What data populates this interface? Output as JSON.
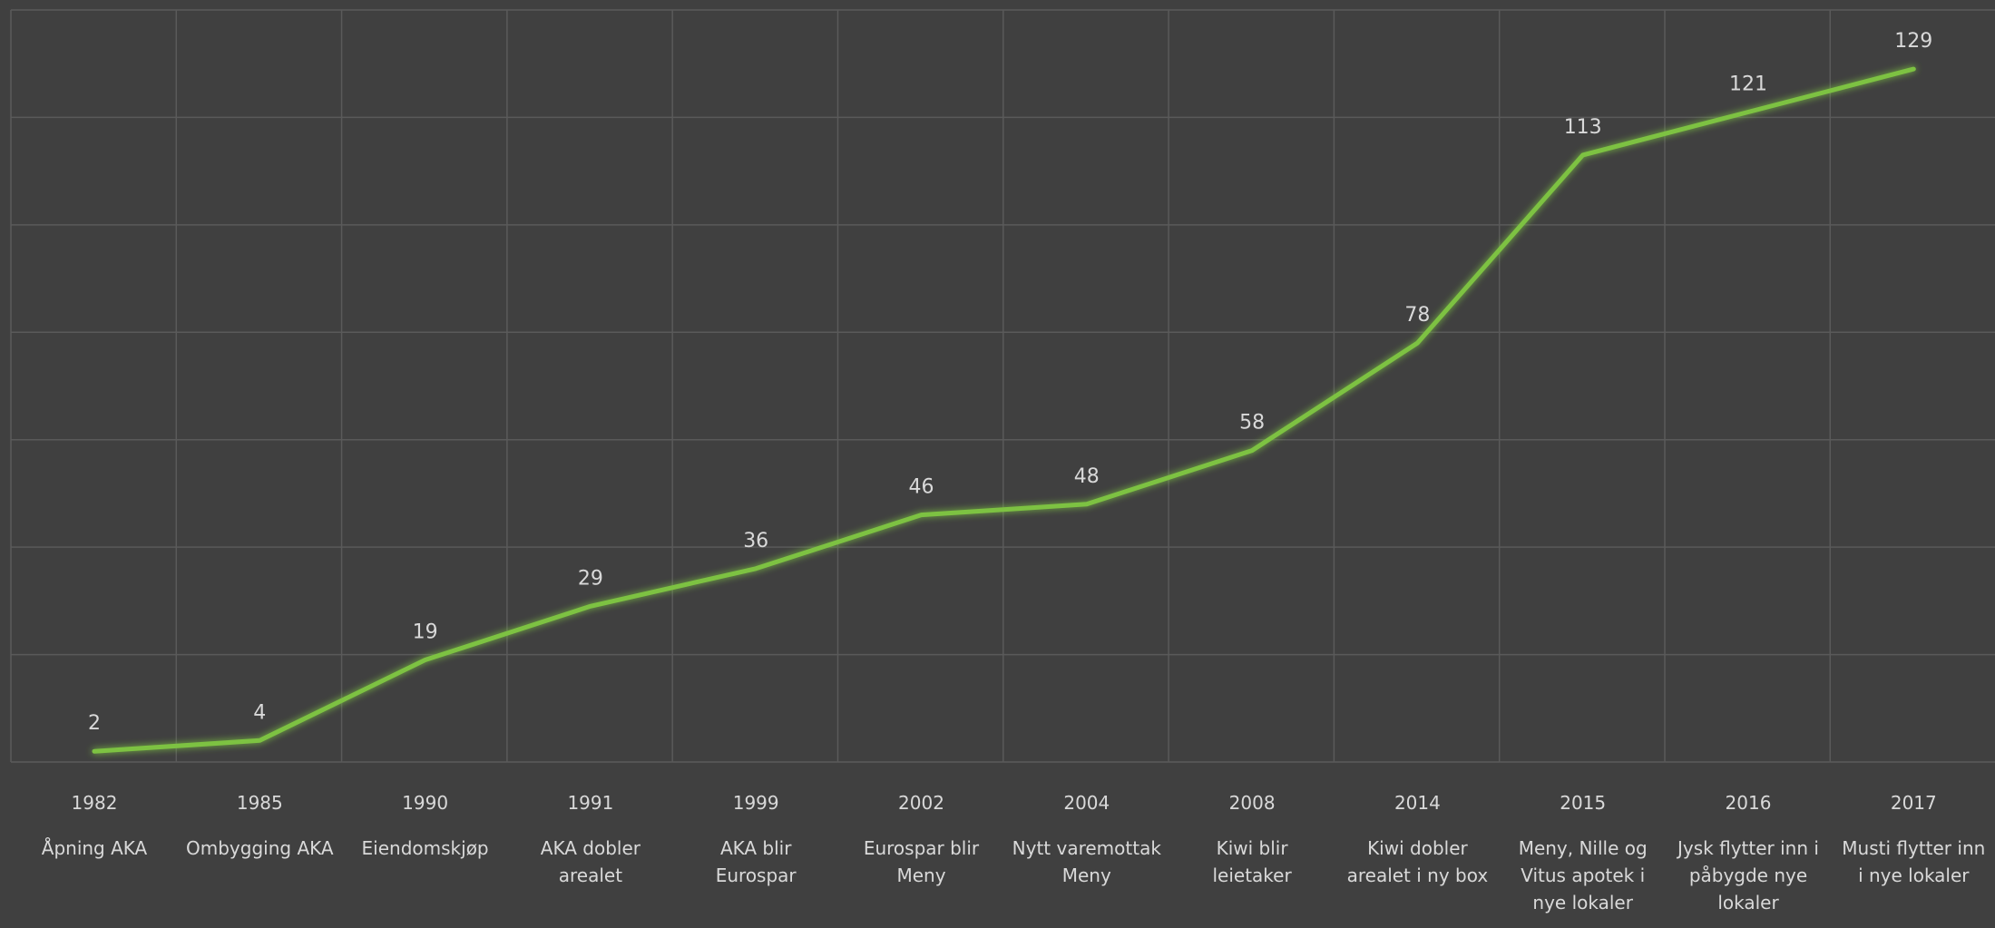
{
  "chart_data": {
    "type": "line",
    "categories": [
      "1982",
      "1985",
      "1990",
      "1991",
      "1999",
      "2002",
      "2004",
      "2008",
      "2014",
      "2015",
      "2016",
      "2017"
    ],
    "events": [
      [
        "Åpning AKA"
      ],
      [
        "Ombygging AKA"
      ],
      [
        "Eiendomskjøp"
      ],
      [
        "AKA dobler",
        "arealet"
      ],
      [
        "AKA blir",
        "Eurospar"
      ],
      [
        "Eurospar blir",
        "Meny"
      ],
      [
        "Nytt varemottak",
        "Meny"
      ],
      [
        "Kiwi blir",
        "leietaker"
      ],
      [
        "Kiwi dobler",
        "arealet i ny box"
      ],
      [
        "Meny, Nille og",
        "Vitus apotek i",
        "nye lokaler"
      ],
      [
        "Jysk flytter inn i",
        "påbygde nye",
        "lokaler"
      ],
      [
        "Musti flytter inn",
        "i nye lokaler"
      ]
    ],
    "series": [
      {
        "values": [
          2,
          4,
          19,
          29,
          36,
          46,
          48,
          58,
          78,
          113,
          121,
          129
        ]
      }
    ],
    "ylim": [
      0,
      140
    ],
    "y_gridline_step": 20,
    "grid": true,
    "line_color": "#7dc242",
    "background_color": "#404040",
    "grid_color": "#5a5a5a",
    "label_color": "#d9d9d9"
  }
}
